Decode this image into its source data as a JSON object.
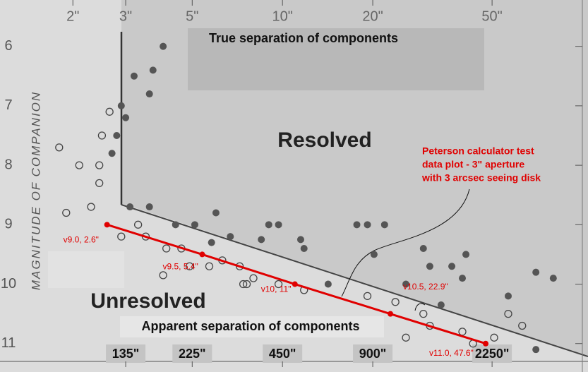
{
  "chart_data": {
    "type": "scatter",
    "x_axis_label_top": "True separation of components",
    "x_axis_label_bottom": "Apparent separation of components",
    "y_axis_label": "MAGNITUDE OF COMPANION",
    "region_labels": [
      "Resolved",
      "Unresolved"
    ],
    "annotation": [
      "Peterson calculator test",
      "data plot - 3\" aperture",
      "with 3 arcsec seeing disk"
    ],
    "xscale": "log",
    "y_inverted": true,
    "xlim": [
      1.2,
      100
    ],
    "x2lim": [
      54,
      4500
    ],
    "ylim": [
      5.6,
      11.3
    ],
    "xticks": [
      {
        "value": 2,
        "label": "2\""
      },
      {
        "value": 3,
        "label": "3\""
      },
      {
        "value": 5,
        "label": "5\""
      },
      {
        "value": 10,
        "label": "10\""
      },
      {
        "value": 20,
        "label": "20\""
      },
      {
        "value": 50,
        "label": "50\""
      }
    ],
    "x2ticks": [
      {
        "value": 135,
        "label": "135\""
      },
      {
        "value": 225,
        "label": "225\""
      },
      {
        "value": 450,
        "label": "450\""
      },
      {
        "value": 900,
        "label": "900\""
      },
      {
        "value": 2250,
        "label": "2250\""
      }
    ],
    "yticks": [
      6,
      7,
      8,
      9,
      10,
      11
    ],
    "grid": false,
    "series": [
      {
        "marker": "filled",
        "color": "#555555",
        "x": [
          4.0,
          3.2,
          3.7,
          2.9,
          3.0,
          2.8,
          2.7,
          3.6,
          3.1,
          3.6,
          4.4,
          5.1,
          5.8,
          6.7,
          9.0,
          9.7,
          8.5,
          11.5,
          11.8,
          17.7,
          19.2,
          21.9,
          20.2,
          29.5,
          36.7,
          40.9,
          39.8,
          31,
          70,
          80,
          14.2,
          25.8,
          33.8,
          56.6,
          70,
          6.0
        ],
        "values": [
          6.0,
          6.5,
          6.4,
          7.0,
          7.2,
          7.5,
          7.8,
          6.8,
          8.7,
          8.7,
          9.0,
          9.0,
          9.3,
          9.2,
          9.0,
          9.0,
          9.25,
          9.25,
          9.4,
          9.0,
          9.0,
          9.0,
          9.5,
          9.4,
          9.7,
          9.5,
          9.9,
          9.7,
          9.8,
          9.9,
          10.0,
          10.0,
          10.35,
          10.2,
          11.1,
          8.8
        ]
      },
      {
        "marker": "open",
        "color": "#444444",
        "x": [
          1.8,
          2.1,
          2.45,
          2.45,
          2.65,
          2.5,
          1.9,
          2.3,
          2.9,
          3.3,
          3.5,
          4.1,
          4.6,
          4.9,
          5.7,
          6.3,
          7.2,
          7.4,
          8.0,
          7.6,
          9.7,
          11.8,
          19.2,
          23.8,
          29.5,
          31,
          39.8,
          25.8,
          43.2,
          63,
          50.8,
          56.6,
          4.0
        ],
        "values": [
          7.7,
          8.0,
          8.0,
          8.3,
          7.1,
          7.5,
          8.8,
          8.7,
          9.2,
          9.0,
          9.2,
          9.4,
          9.4,
          9.7,
          9.7,
          9.6,
          9.7,
          10.0,
          9.9,
          10.0,
          10.0,
          10.1,
          10.2,
          10.3,
          10.5,
          10.7,
          10.8,
          10.9,
          11.0,
          10.7,
          10.9,
          10.5,
          9.85
        ]
      },
      {
        "marker": "dot-line",
        "color": "#e00000",
        "x": [
          2.6,
          5.4,
          11,
          22.9,
          47.6
        ],
        "values": [
          9.0,
          9.5,
          10,
          10.5,
          11.0
        ],
        "point_labels": [
          "v9.0, 2.6\"",
          "v9.5, 5.4\"",
          "v10, 11\"",
          "v10.5, 22.9\"",
          "v11.0, 47.6\""
        ]
      }
    ]
  }
}
